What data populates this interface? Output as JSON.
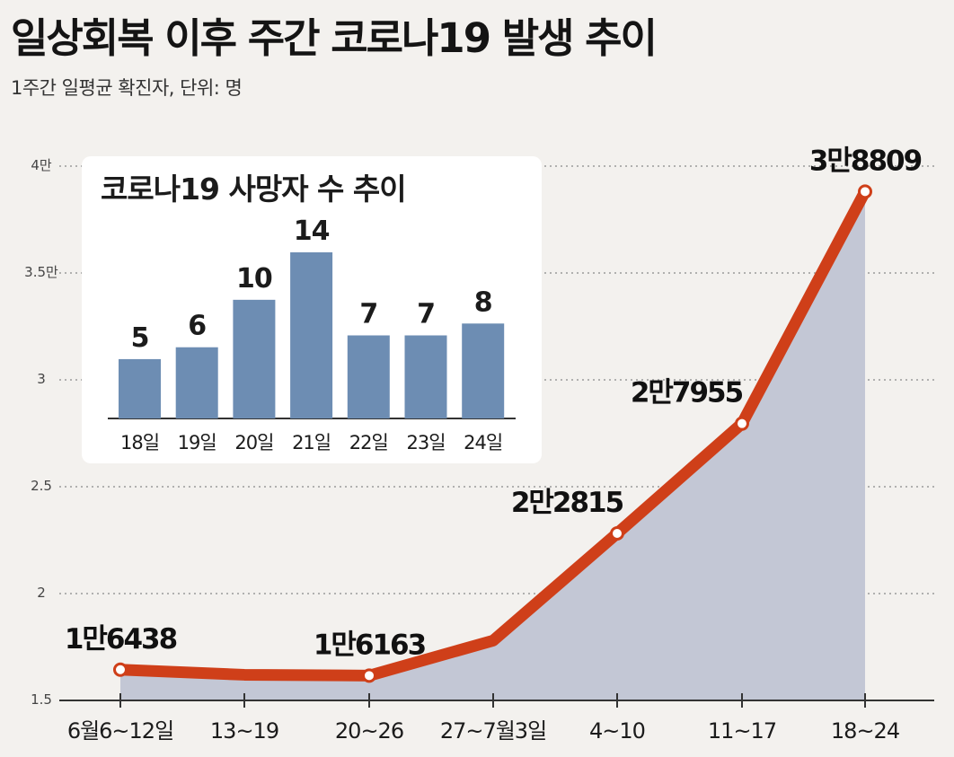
{
  "title": "일상회복 이후 주간 코로나19 발생 추이",
  "subtitle": "1주간 일평균 확진자, 단위: 명",
  "chart_data": [
    {
      "type": "area",
      "y_axis_ticks": [
        "4만",
        "3.5만",
        "3",
        "2.5",
        "2",
        "1.5"
      ],
      "ylim": [
        15000,
        40000
      ],
      "grid": "dotted horizontal",
      "categories": [
        "6월6~12일",
        "13~19",
        "20~26",
        "27~7월3일",
        "4~10",
        "11~17",
        "18~24"
      ],
      "values": [
        16438,
        16200,
        16163,
        17800,
        22815,
        27955,
        38809
      ],
      "point_labels": [
        "1만6438",
        "",
        "1만6163",
        "",
        "2만2815",
        "2만7955",
        "3만8809"
      ],
      "colors": {
        "line": "#cf3f19",
        "area": "#c3c7d5"
      }
    },
    {
      "type": "bar",
      "title": "코로나19 사망자 수 추이",
      "categories": [
        "18일",
        "19일",
        "20일",
        "21일",
        "22일",
        "23일",
        "24일"
      ],
      "values": [
        5,
        6,
        10,
        14,
        7,
        7,
        8
      ],
      "colors": {
        "bar": "#6d8db3"
      }
    }
  ]
}
